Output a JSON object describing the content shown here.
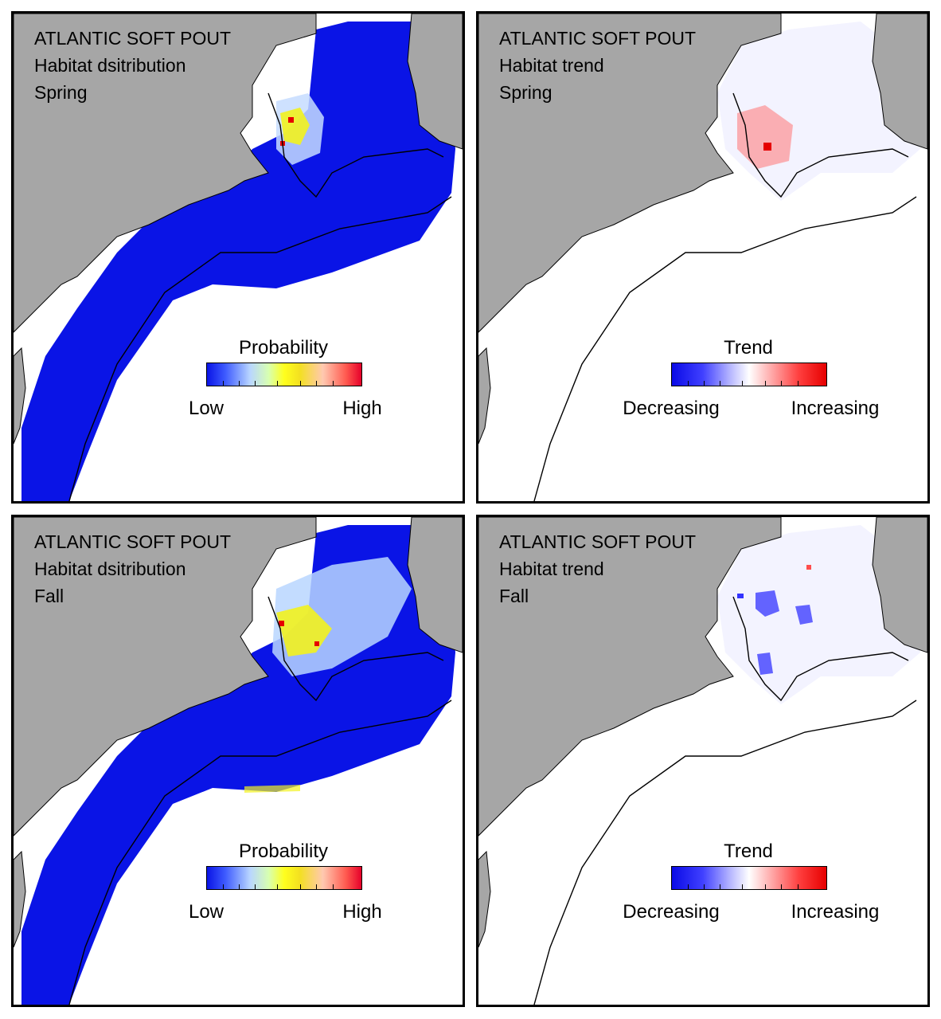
{
  "panels": [
    {
      "species": "ATLANTIC SOFT POUT",
      "subtitle": "Habitat dsitribution",
      "season": "Spring",
      "legend": {
        "title": "Probability",
        "low_label": "Low",
        "high_label": "High",
        "colors": [
          "#0a14e6",
          "#b9d6ff",
          "#ffff1e",
          "#e6002a"
        ]
      },
      "map_layer": "habitat-probability"
    },
    {
      "species": "ATLANTIC SOFT POUT",
      "subtitle": "Habitat trend",
      "season": "Spring",
      "legend": {
        "title": "Trend",
        "low_label": "Decreasing",
        "high_label": "Increasing",
        "colors": [
          "#0a0ae6",
          "#ffffff",
          "#e60000"
        ]
      },
      "map_layer": "habitat-trend"
    },
    {
      "species": "ATLANTIC SOFT POUT",
      "subtitle": "Habitat dsitribution",
      "season": "Fall",
      "legend": {
        "title": "Probability",
        "low_label": "Low",
        "high_label": "High",
        "colors": [
          "#0a14e6",
          "#b9d6ff",
          "#ffff1e",
          "#e6002a"
        ]
      },
      "map_layer": "habitat-probability"
    },
    {
      "species": "ATLANTIC SOFT POUT",
      "subtitle": "Habitat trend",
      "season": "Fall",
      "legend": {
        "title": "Trend",
        "low_label": "Decreasing",
        "high_label": "Increasing",
        "colors": [
          "#0a0ae6",
          "#ffffff",
          "#e60000"
        ]
      },
      "map_layer": "habitat-trend"
    }
  ],
  "colors": {
    "land": "#a6a6a6",
    "ocean": "#ffffff",
    "habitat_low": "#0a14e6",
    "habitat_mid": "#b9d6ff",
    "habitat_yellow": "#ffff1e",
    "habitat_high": "#e6002a",
    "trend_increase": "#ff4d4d",
    "trend_decrease": "#3333ff"
  }
}
